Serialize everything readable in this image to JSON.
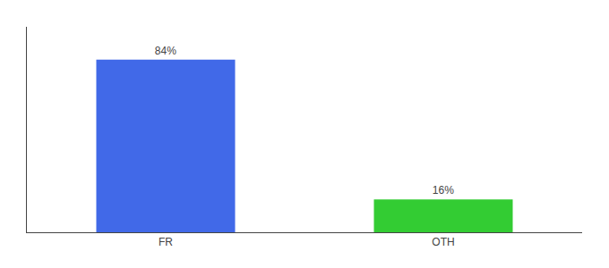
{
  "chart_data": {
    "type": "bar",
    "categories": [
      "FR",
      "OTH"
    ],
    "values": [
      84,
      16
    ],
    "value_labels": [
      "84%",
      "16%"
    ],
    "colors": [
      "#4169e8",
      "#33cc33"
    ],
    "ylim": [
      0,
      100
    ],
    "grid": false,
    "data_labels": true,
    "tick_labels": "x"
  }
}
